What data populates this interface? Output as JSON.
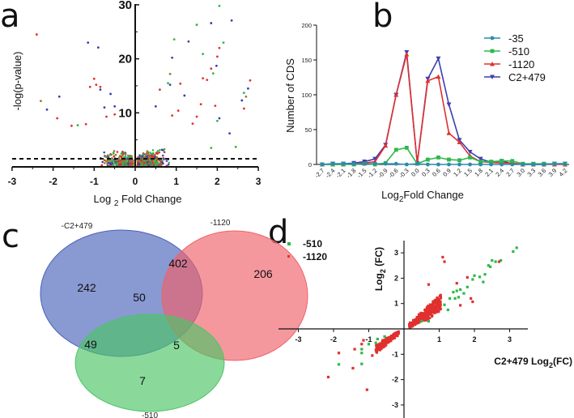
{
  "panel_letters": {
    "a": "a",
    "b": "b",
    "c": "c",
    "d": "d"
  },
  "colors": {
    "teal": "#2a8cab",
    "green": "#2fb84a",
    "red": "#e0312f",
    "blue": "#3d3fb0",
    "olive": "#9a7a30"
  },
  "chart_data": [
    {
      "panel": "a",
      "type": "scatter",
      "title": "",
      "xlabel_pre": "Log ",
      "xlabel_sub": "2",
      "xlabel_post": " Fold Change",
      "ylabel": "-log(p-value)",
      "xlim": [
        -3,
        3
      ],
      "ylim": [
        0,
        30
      ],
      "xticks": [
        "-3",
        "-2",
        "-1",
        "0",
        "1",
        "2",
        "3"
      ],
      "yticks": [
        "10",
        "20",
        "30"
      ],
      "threshold_line_y": 1.5,
      "series": [
        {
          "name": "red",
          "color": "#e0312f",
          "points": [
            [
              -2.4,
              24.5
            ],
            [
              -1.9,
              9
            ],
            [
              -1.0,
              16.3
            ],
            [
              -1.1,
              14.8
            ],
            [
              -0.95,
              15.2
            ],
            [
              -0.85,
              14.8
            ],
            [
              -0.7,
              9.3
            ],
            [
              -0.5,
              9.7
            ],
            [
              0.6,
              14.3
            ],
            [
              1.05,
              10.4
            ],
            [
              1.1,
              15.4
            ],
            [
              1.4,
              8
            ],
            [
              1.6,
              11.6
            ],
            [
              1.65,
              16.4
            ],
            [
              1.75,
              16.1
            ],
            [
              1.85,
              18.2
            ],
            [
              1.95,
              11.3
            ],
            [
              2.0,
              20.4
            ],
            [
              2.05,
              22
            ],
            [
              2.8,
              16
            ],
            [
              2.65,
              10.8
            ],
            [
              0.9,
              9.5
            ],
            [
              1.5,
              9.3
            ],
            [
              -1.2,
              7.9
            ],
            [
              -1.55,
              7.6
            ]
          ]
        },
        {
          "name": "blue",
          "color": "#3d3fb0",
          "points": [
            [
              -1.15,
              23
            ],
            [
              -0.9,
              22.1
            ],
            [
              -1.85,
              13
            ],
            [
              -2.15,
              10.6
            ],
            [
              -0.6,
              13.5
            ],
            [
              -0.75,
              11
            ],
            [
              -0.5,
              11.2
            ],
            [
              0.85,
              15.2
            ],
            [
              0.9,
              20.2
            ],
            [
              1.3,
              23.2
            ],
            [
              1.85,
              26.6
            ],
            [
              2.35,
              27.1
            ],
            [
              1.98,
              18.7
            ],
            [
              1.2,
              13.2
            ],
            [
              2.75,
              14.5
            ],
            [
              2.6,
              12.3
            ],
            [
              2.05,
              9
            ],
            [
              2.3,
              6.2
            ],
            [
              0.5,
              11.2
            ],
            [
              -0.85,
              14.3
            ]
          ]
        },
        {
          "name": "green",
          "color": "#2fb84a",
          "points": [
            [
              0.95,
              23.6
            ],
            [
              1.5,
              26.3
            ],
            [
              2.05,
              29.8
            ],
            [
              2.15,
              23
            ],
            [
              1.65,
              20.9
            ],
            [
              1.9,
              17.3
            ],
            [
              0.8,
              15.5
            ],
            [
              2.65,
              13.7
            ],
            [
              2.0,
              8.5
            ],
            [
              2.45,
              3.7
            ],
            [
              -1.4,
              7.7
            ],
            [
              1.85,
              3.5
            ]
          ]
        },
        {
          "name": "olive",
          "color": "#9a7a30",
          "points": [
            [
              -2.3,
              12.2
            ],
            [
              0.85,
              17.2
            ],
            [
              2.7,
              13
            ]
          ]
        }
      ]
    },
    {
      "panel": "b",
      "type": "line",
      "title": "",
      "xlabel_pre": "Log",
      "xlabel_sub": "2",
      "xlabel_post": "Fold Change",
      "ylabel": "Number of CDS",
      "ylim": [
        0,
        200
      ],
      "yticks": [
        "0",
        "50",
        "100",
        "150",
        "200"
      ],
      "categories": [
        "-2.7",
        "-2.4",
        "-2.1",
        "-1.8",
        "-1.5",
        "-1.2",
        "-0.9",
        "-0.6",
        "-0.3",
        "0.0",
        "0.3",
        "0.6",
        "0.9",
        "1.2",
        "1.5",
        "1.8",
        "2.1",
        "2.4",
        "2.7",
        "3.0",
        "3.3",
        "3.6",
        "3.9",
        "4.2"
      ],
      "legend_position": "top-right",
      "series": [
        {
          "name": "-35",
          "color": "#2a8cab",
          "marker": "circle",
          "values": [
            0,
            1,
            1,
            1,
            1,
            1,
            1,
            1,
            0,
            1,
            0,
            0,
            0,
            0,
            0,
            0,
            0,
            0,
            0,
            0,
            0,
            0,
            1,
            1
          ]
        },
        {
          "name": "-510",
          "color": "#2fb84a",
          "marker": "square",
          "values": [
            0,
            0,
            0,
            0,
            1,
            0,
            2,
            21,
            24,
            1,
            7,
            10,
            7,
            6,
            10,
            4,
            4,
            5,
            5,
            1,
            1,
            1,
            1,
            1
          ]
        },
        {
          "name": "-1120",
          "color": "#e0312f",
          "marker": "triangle-up",
          "values": [
            0,
            0,
            0,
            1,
            2,
            4,
            27,
            100,
            158,
            2,
            120,
            126,
            45,
            32,
            12,
            4,
            3,
            2,
            2,
            0,
            0,
            0,
            0,
            0
          ]
        },
        {
          "name": "C2+479",
          "color": "#3d3fb0",
          "marker": "triangle-down",
          "values": [
            0,
            1,
            1,
            2,
            4,
            8,
            28,
            100,
            161,
            2,
            123,
            152,
            86,
            35,
            18,
            8,
            3,
            5,
            1,
            0,
            0,
            0,
            1,
            1
          ]
        }
      ]
    },
    {
      "panel": "c",
      "type": "venn",
      "sets": [
        {
          "name": "-C2+479",
          "color": "#4a63b8"
        },
        {
          "name": "-1120",
          "color": "#f0616a"
        },
        {
          "name": "-510",
          "color": "#4cc466"
        }
      ],
      "regions": {
        "only_c2": "242",
        "c2_1120": "402",
        "only_1120": "206",
        "all": "50",
        "c2_510": "49",
        "1120_510": "5",
        "only_510": "7"
      }
    },
    {
      "panel": "d",
      "type": "scatter",
      "xlabel_pre": "C2+479 Log",
      "xlabel_sub": "2",
      "xlabel_post": "(FC)",
      "ylabel_pre": "Log",
      "ylabel_sub": "2",
      "ylabel_post": " (FC)",
      "xlim": [
        -3.5,
        3.5
      ],
      "ylim": [
        -3.3,
        3.3
      ],
      "xticks": [
        "-3",
        "-2",
        "-1",
        "1",
        "2",
        "3"
      ],
      "yticks": [
        "3",
        "2",
        "1",
        "-1",
        "-2",
        "-3"
      ],
      "legend_position": "top-left",
      "series": [
        {
          "name": "-510",
          "color": "#2fb84a",
          "points": [
            [
              3.2,
              3.2
            ],
            [
              3.1,
              3.05
            ],
            [
              2.75,
              2.7
            ],
            [
              2.6,
              2.65
            ],
            [
              2.5,
              2.7
            ],
            [
              2.4,
              2.5
            ],
            [
              2.45,
              2.45
            ],
            [
              2.3,
              2.15
            ],
            [
              2.25,
              1.85
            ],
            [
              2.0,
              2.1
            ],
            [
              2.15,
              2.05
            ],
            [
              1.95,
              1.95
            ],
            [
              1.8,
              1.65
            ],
            [
              1.7,
              1.4
            ],
            [
              1.6,
              1.55
            ],
            [
              1.5,
              1.5
            ],
            [
              1.4,
              1.45
            ],
            [
              1.45,
              1.2
            ],
            [
              1.55,
              1.25
            ],
            [
              1.3,
              1.2
            ],
            [
              1.25,
              0.75
            ],
            [
              1.15,
              0.95
            ],
            [
              0.7,
              0.3
            ],
            [
              0.5,
              0.3
            ],
            [
              -1.85,
              -1.4
            ],
            [
              -1.2,
              -1.38
            ],
            [
              -1.2,
              -0.95
            ],
            [
              -1.2,
              -0.8
            ],
            [
              -1.0,
              -0.6
            ],
            [
              -0.75,
              -0.4
            ],
            [
              -0.55,
              -0.3
            ],
            [
              -0.8,
              -0.55
            ]
          ]
        },
        {
          "name": "-1120",
          "color": "#e0312f",
          "points": [
            [
              1.1,
              2.83
            ],
            [
              1.15,
              2.65
            ],
            [
              2.7,
              2.65
            ],
            [
              1.8,
              2.03
            ],
            [
              0.7,
              1.75
            ],
            [
              1.5,
              1.8
            ],
            [
              1.9,
              1.2
            ],
            [
              1.95,
              1.07
            ],
            [
              1.6,
              0.93
            ],
            [
              -2.15,
              -1.9
            ],
            [
              -1.05,
              -2.4
            ],
            [
              -1.45,
              -1.55
            ],
            [
              -1.85,
              -0.95
            ],
            [
              -1.4,
              -0.8
            ],
            [
              -1.2,
              -0.6
            ],
            [
              -1.15,
              -0.45
            ],
            [
              -0.9,
              -1.05
            ]
          ]
        }
      ]
    }
  ]
}
